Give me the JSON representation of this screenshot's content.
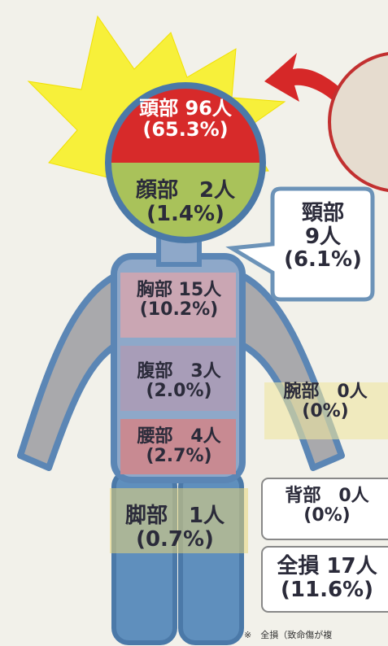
{
  "regions": {
    "head": {
      "lines": [
        "頭部 96人",
        "(65.3%)"
      ]
    },
    "face": {
      "lines": [
        "顔部　2人",
        "(1.4%)"
      ]
    },
    "neck": {
      "lines": [
        "頸部",
        "9人",
        "(6.1%)"
      ]
    },
    "chest": {
      "lines": [
        "胸部 15人",
        "(10.2%)"
      ]
    },
    "abdomen": {
      "lines": [
        "腹部　3人",
        "(2.0%)"
      ]
    },
    "arm": {
      "lines": [
        "腕部　0人",
        "(0%)"
      ]
    },
    "waist": {
      "lines": [
        "腰部　4人",
        "(2.7%)"
      ]
    },
    "leg": {
      "lines": [
        "脚部　1人",
        "(0.7%)"
      ]
    },
    "back": {
      "lines": [
        "背部　0人",
        "(0%)"
      ]
    },
    "total": {
      "lines": [
        "全損 17人",
        "(11.6%)"
      ]
    }
  },
  "footnote": "※　全損（致命傷が複"
}
